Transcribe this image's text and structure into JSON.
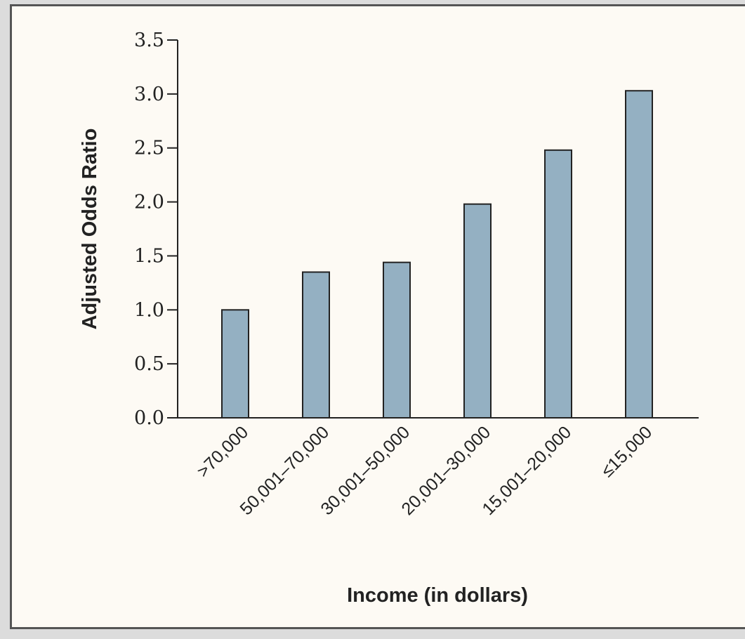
{
  "chart_data": {
    "type": "bar",
    "categories": [
      ">70,000",
      "50,001–70,000",
      "30,001–50,000",
      "20,001–30,000",
      "15,001–20,000",
      "≤15,000"
    ],
    "values": [
      1.0,
      1.35,
      1.44,
      1.98,
      2.48,
      3.03
    ],
    "title": "",
    "xlabel": "Income (in dollars)",
    "ylabel": "Adjusted Odds Ratio",
    "ylim": [
      0,
      3.5
    ],
    "yticks": [
      "0.0",
      "0.5",
      "1.0",
      "1.5",
      "2.0",
      "2.5",
      "3.0",
      "3.5"
    ],
    "grid": false,
    "bar_color": "#94b0c2",
    "bar_edge_color": "#222222",
    "background_color": "#fdfaf4"
  }
}
